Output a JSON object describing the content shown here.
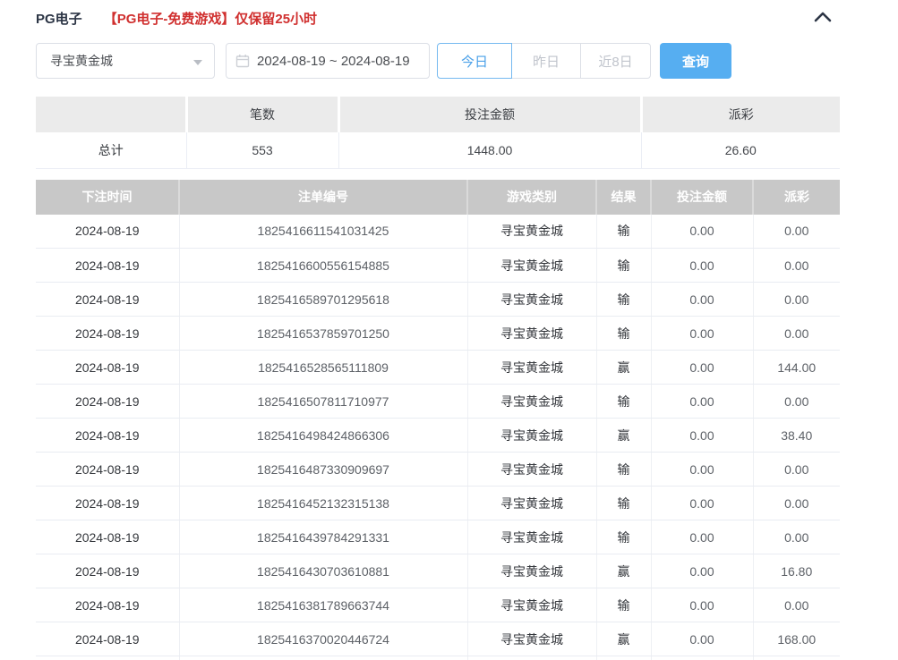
{
  "header": {
    "title": "PG电子",
    "notice": "【PG电子-免费游戏】仅保留25小时",
    "collapse_icon": "chevron-up-icon"
  },
  "filters": {
    "game_select": {
      "value": "寻宝黄金城",
      "icon": "caret-down-icon"
    },
    "date_range": {
      "value": "2024-08-19 ~ 2024-08-19",
      "icon": "calendar-icon"
    },
    "quick_buttons": [
      {
        "label": "今日",
        "active": true
      },
      {
        "label": "昨日",
        "active": false
      },
      {
        "label": "近8日",
        "active": false
      }
    ],
    "search_label": "查询"
  },
  "summary": {
    "columns": [
      "",
      "笔数",
      "投注金额",
      "派彩"
    ],
    "row": {
      "label": "总计",
      "count": "553",
      "bet_amount": "1448.00",
      "payout": "26.60"
    }
  },
  "records": {
    "columns": [
      "下注时间",
      "注单编号",
      "游戏类别",
      "结果",
      "投注金额",
      "派彩"
    ],
    "rows": [
      [
        "2024-08-19",
        "1825416611541031425",
        "寻宝黄金城",
        "输",
        "0.00",
        "0.00"
      ],
      [
        "2024-08-19",
        "1825416600556154885",
        "寻宝黄金城",
        "输",
        "0.00",
        "0.00"
      ],
      [
        "2024-08-19",
        "1825416589701295618",
        "寻宝黄金城",
        "输",
        "0.00",
        "0.00"
      ],
      [
        "2024-08-19",
        "1825416537859701250",
        "寻宝黄金城",
        "输",
        "0.00",
        "0.00"
      ],
      [
        "2024-08-19",
        "1825416528565111809",
        "寻宝黄金城",
        "赢",
        "0.00",
        "144.00"
      ],
      [
        "2024-08-19",
        "1825416507811710977",
        "寻宝黄金城",
        "输",
        "0.00",
        "0.00"
      ],
      [
        "2024-08-19",
        "1825416498424866306",
        "寻宝黄金城",
        "赢",
        "0.00",
        "38.40"
      ],
      [
        "2024-08-19",
        "1825416487330909697",
        "寻宝黄金城",
        "输",
        "0.00",
        "0.00"
      ],
      [
        "2024-08-19",
        "1825416452132315138",
        "寻宝黄金城",
        "输",
        "0.00",
        "0.00"
      ],
      [
        "2024-08-19",
        "1825416439784291331",
        "寻宝黄金城",
        "输",
        "0.00",
        "0.00"
      ],
      [
        "2024-08-19",
        "1825416430703610881",
        "寻宝黄金城",
        "赢",
        "0.00",
        "16.80"
      ],
      [
        "2024-08-19",
        "1825416381789663744",
        "寻宝黄金城",
        "输",
        "0.00",
        "0.00"
      ],
      [
        "2024-08-19",
        "1825416370020446724",
        "寻宝黄金城",
        "赢",
        "0.00",
        "168.00"
      ]
    ]
  },
  "colors": {
    "accent_blue": "#56aef1",
    "active_tab_blue": "#4aa0e8",
    "notice_red": "#d0302f",
    "records_header_gray": "#c8c8c8",
    "summary_header_gray": "#ebebeb",
    "title_navy": "#2c3545"
  }
}
